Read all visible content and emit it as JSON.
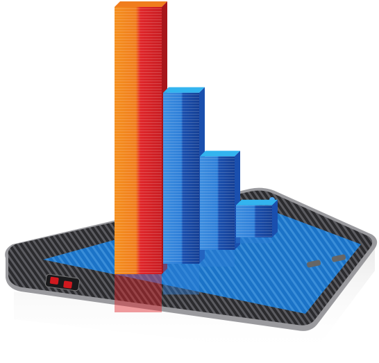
{
  "illustration": {
    "subject": "smartphone-with-3d-bar-chart",
    "colors": {
      "background": "#ffffff",
      "phone_body": "#2b2b2e",
      "phone_edge": "#9a9a9e",
      "screen": "#1f7fd6",
      "screen_dark": "#0e4f9c",
      "orange_bar": "#f07d1e",
      "red_bar": "#e0262a",
      "blue_bar": "#2f7fd8",
      "blue_bar_dark": "#1a4fae",
      "blue_bar_top": "#33b4ef",
      "button_red": "#d0191f"
    },
    "bars": [
      {
        "color": "orange-red",
        "relative_height": 1.0
      },
      {
        "color": "blue",
        "relative_height": 0.64
      },
      {
        "color": "blue",
        "relative_height": 0.35
      },
      {
        "color": "blue",
        "relative_height": 0.12
      }
    ]
  }
}
